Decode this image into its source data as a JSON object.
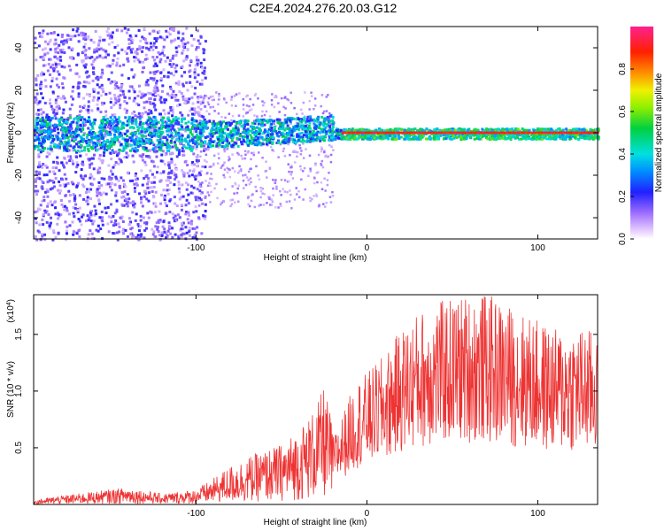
{
  "title": "C2E4.2024.276.20.03.G12",
  "chart_data": [
    {
      "type": "heatmap",
      "name": "spectrogram",
      "xlabel": "Height of straight line (km)",
      "ylabel": "Frequency (Hz)",
      "xlim": [
        -195,
        135
      ],
      "ylim": [
        -50,
        50
      ],
      "xticks": [
        -100,
        0,
        100
      ],
      "xtick_labels": [
        "-100",
        "0",
        "100"
      ],
      "yticks": [
        -40,
        -20,
        0,
        20,
        40
      ],
      "ytick_labels": [
        "-40",
        "-20",
        "0",
        "20",
        "40"
      ],
      "colorbar": {
        "label": "Normalized spectral amplitude",
        "range": [
          0,
          1
        ],
        "ticks": [
          0.0,
          0.2,
          0.4,
          0.6,
          0.8
        ],
        "tick_labels": [
          "0.0",
          "0.2",
          "0.4",
          "0.6",
          "0.8"
        ]
      },
      "signal_band": {
        "center_hz": 0,
        "note": "scattered noise left of -100 km, strong narrow line at 0 Hz right of -20 km"
      }
    },
    {
      "type": "line",
      "name": "snr",
      "xlabel": "Height of straight line (km)",
      "ylabel": "SNR (10 * v/v)",
      "scale_label": "(x10",
      "scale_exp": "4",
      "scale_close": ")",
      "xlim": [
        -195,
        135
      ],
      "ylim": [
        0,
        1.85
      ],
      "xticks": [
        -100,
        0,
        100
      ],
      "xtick_labels": [
        "-100",
        "0",
        "100"
      ],
      "yticks": [
        0.5,
        1.0,
        1.5
      ],
      "ytick_labels": [
        "0.5",
        "1.0",
        "1.5"
      ],
      "color": "#ee3333",
      "series": [
        {
          "name": "SNR",
          "x": [
            -195,
            -180,
            -160,
            -140,
            -120,
            -100,
            -90,
            -80,
            -70,
            -60,
            -50,
            -40,
            -30,
            -25,
            -20,
            -15,
            -10,
            -5,
            0,
            10,
            20,
            30,
            40,
            50,
            60,
            70,
            80,
            90,
            100,
            110,
            120,
            130,
            135
          ],
          "y": [
            0.02,
            0.04,
            0.06,
            0.08,
            0.05,
            0.07,
            0.12,
            0.18,
            0.22,
            0.25,
            0.28,
            0.35,
            0.45,
            0.55,
            0.38,
            0.5,
            0.62,
            0.72,
            0.75,
            0.85,
            1.0,
            1.1,
            1.15,
            1.18,
            1.2,
            1.2,
            1.15,
            1.1,
            1.05,
            1.0,
            1.02,
            1.0,
            1.0
          ]
        }
      ]
    }
  ]
}
